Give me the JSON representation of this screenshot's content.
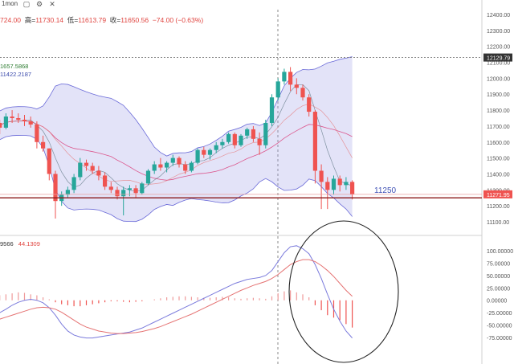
{
  "toolbar": {
    "interval_label": "1mon",
    "icons": [
      "calendar-icon",
      "settings-icon",
      "close-icon"
    ]
  },
  "ohlc": {
    "open_value": "724.00",
    "high_key": "高=",
    "high_value": "11730.14",
    "low_key": "低=",
    "low_value": "11613.79",
    "close_key": "收=",
    "close_value": "11650.56",
    "change": "−74.00 (−0.63%)"
  },
  "bollinger": {
    "upper": "1657.5868",
    "middle": "11422.2187"
  },
  "oscillator": {
    "label_a": "9566",
    "label_b": "44.1309"
  },
  "annotation": {
    "level_text": "11250"
  },
  "price_axis": {
    "ticks": [
      "12400.00",
      "12300.00",
      "12200.00",
      "12100.00",
      "12000.00",
      "11900.00",
      "11800.00",
      "11700.00",
      "11600.00",
      "11500.00",
      "11400.00",
      "11300.00",
      "11200.00",
      "11100.00"
    ],
    "current_badge": "12129.79",
    "last_badge": "11271.95"
  },
  "osc_axis": {
    "ticks": [
      "100.00000",
      "75.00000",
      "50.00000",
      "25.00000",
      "0.00000",
      "-25.00000",
      "-50.00000",
      "-75.00000"
    ]
  },
  "colors": {
    "up": "#26a69a",
    "down": "#ef5350",
    "band_fill": "#9c9ce6",
    "band_line": "#6a6ad8",
    "support_line": "#8b1a1a",
    "macd_line": "#e57373",
    "signal_line": "#7b7bdc",
    "circle": "#222222"
  },
  "chart_data": [
    {
      "type": "candlestick",
      "title": "",
      "ylim": [
        11050,
        12470
      ],
      "y_ticks": [
        12400,
        12300,
        12200,
        12100,
        12000,
        11900,
        11800,
        11700,
        11600,
        11500,
        11400,
        11300,
        11200,
        11100
      ],
      "candles": [
        [
          11740,
          11760,
          11700,
          11720
        ],
        [
          11720,
          11740,
          11650,
          11690
        ],
        [
          11690,
          11780,
          11680,
          11760
        ],
        [
          11760,
          11800,
          11720,
          11750
        ],
        [
          11750,
          11780,
          11720,
          11740
        ],
        [
          11740,
          11770,
          11700,
          11730
        ],
        [
          11730,
          11760,
          11690,
          11710
        ],
        [
          11710,
          11730,
          11560,
          11600
        ],
        [
          11600,
          11640,
          11540,
          11560
        ],
        [
          11560,
          11560,
          11360,
          11400
        ],
        [
          11400,
          11420,
          11120,
          11230
        ],
        [
          11230,
          11290,
          11200,
          11270
        ],
        [
          11270,
          11320,
          11250,
          11300
        ],
        [
          11300,
          11400,
          11280,
          11380
        ],
        [
          11380,
          11500,
          11360,
          11470
        ],
        [
          11470,
          11490,
          11420,
          11450
        ],
        [
          11450,
          11470,
          11400,
          11420
        ],
        [
          11420,
          11450,
          11360,
          11390
        ],
        [
          11390,
          11410,
          11300,
          11320
        ],
        [
          11320,
          11350,
          11280,
          11300
        ],
        [
          11300,
          11320,
          11240,
          11260
        ],
        [
          11260,
          11320,
          11140,
          11300
        ],
        [
          11300,
          11330,
          11260,
          11310
        ],
        [
          11310,
          11330,
          11250,
          11280
        ],
        [
          11280,
          11350,
          11270,
          11340
        ],
        [
          11340,
          11430,
          11330,
          11420
        ],
        [
          11420,
          11480,
          11400,
          11460
        ],
        [
          11460,
          11500,
          11420,
          11440
        ],
        [
          11440,
          11480,
          11410,
          11470
        ],
        [
          11470,
          11520,
          11450,
          11500
        ],
        [
          11500,
          11510,
          11440,
          11460
        ],
        [
          11460,
          11480,
          11400,
          11420
        ],
        [
          11420,
          11480,
          11410,
          11470
        ],
        [
          11470,
          11560,
          11460,
          11550
        ],
        [
          11550,
          11570,
          11500,
          11520
        ],
        [
          11520,
          11560,
          11490,
          11550
        ],
        [
          11550,
          11600,
          11530,
          11580
        ],
        [
          11580,
          11620,
          11560,
          11600
        ],
        [
          11600,
          11660,
          11590,
          11650
        ],
        [
          11650,
          11660,
          11560,
          11580
        ],
        [
          11580,
          11650,
          11570,
          11640
        ],
        [
          11640,
          11690,
          11620,
          11680
        ],
        [
          11680,
          11700,
          11600,
          11620
        ],
        [
          11620,
          11660,
          11520,
          11580
        ],
        [
          11580,
          11740,
          11560,
          11720
        ],
        [
          11720,
          11900,
          11700,
          11880
        ],
        [
          11880,
          12000,
          11860,
          11980
        ],
        [
          11980,
          12060,
          11960,
          12040
        ],
        [
          12040,
          12070,
          11920,
          11960
        ],
        [
          11960,
          12000,
          11900,
          11940
        ],
        [
          11940,
          11960,
          11860,
          11880
        ],
        [
          11880,
          11900,
          11760,
          11790
        ],
        [
          11790,
          11800,
          11340,
          11420
        ],
        [
          11420,
          11460,
          11180,
          11350
        ],
        [
          11350,
          11380,
          11180,
          11300
        ],
        [
          11300,
          11390,
          11270,
          11370
        ],
        [
          11370,
          11390,
          11290,
          11330
        ],
        [
          11330,
          11380,
          11300,
          11350
        ],
        [
          11350,
          11360,
          11240,
          11272
        ]
      ]
    },
    {
      "type": "bar",
      "title": "",
      "ylim": [
        -90,
        115
      ],
      "y_ticks": [
        100,
        75,
        50,
        25,
        0,
        -25,
        -50,
        -75
      ],
      "histogram": [
        8,
        10,
        12,
        14,
        16,
        15,
        12,
        10,
        6,
        2,
        -4,
        -8,
        -10,
        -12,
        -12,
        -10,
        -8,
        -6,
        -4,
        -2,
        -2,
        -3,
        -4,
        -3,
        -2,
        0,
        2,
        4,
        6,
        7,
        8,
        8,
        7,
        6,
        5,
        5,
        6,
        7,
        6,
        4,
        3,
        4,
        5,
        4,
        3,
        8,
        14,
        18,
        20,
        16,
        12,
        6,
        -10,
        -20,
        -30,
        -35,
        -40,
        -48,
        -55
      ],
      "series": [
        {
          "values": [
            -30,
            -25,
            -18,
            -10,
            -4,
            0,
            2,
            0,
            -5,
            -15,
            -30,
            -48,
            -62,
            -70,
            -74,
            -76,
            -76,
            -74,
            -72,
            -70,
            -68,
            -66,
            -64,
            -60,
            -56,
            -50,
            -44,
            -38,
            -32,
            -26,
            -20,
            -14,
            -8,
            -2,
            4,
            10,
            16,
            22,
            28,
            34,
            38,
            42,
            44,
            46,
            50,
            60,
            78,
            96,
            108,
            110,
            104,
            94,
            72,
            44,
            12,
            -18,
            -42,
            -62,
            -76
          ]
        },
        {
          "values": [
            -40,
            -38,
            -34,
            -30,
            -26,
            -22,
            -18,
            -15,
            -14,
            -15,
            -18,
            -24,
            -32,
            -40,
            -48,
            -54,
            -58,
            -62,
            -64,
            -66,
            -67,
            -67,
            -66,
            -65,
            -63,
            -60,
            -57,
            -53,
            -48,
            -43,
            -38,
            -33,
            -28,
            -22,
            -16,
            -10,
            -4,
            2,
            8,
            14,
            20,
            25,
            30,
            34,
            38,
            44,
            52,
            62,
            72,
            78,
            82,
            82,
            78,
            70,
            60,
            48,
            34,
            20,
            8
          ]
        }
      ]
    }
  ]
}
